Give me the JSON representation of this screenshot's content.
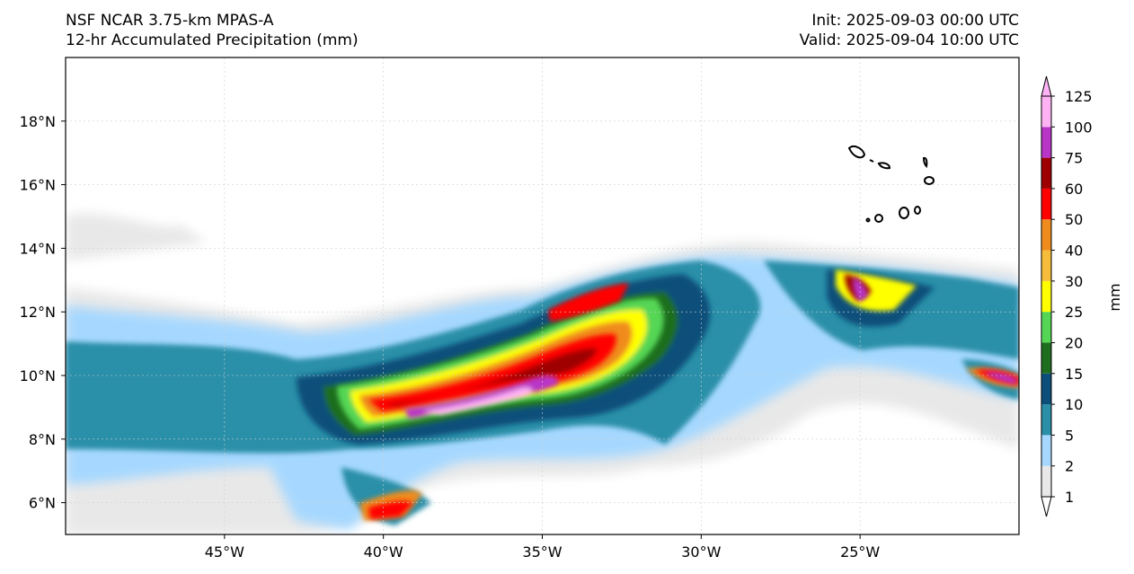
{
  "header": {
    "title_left_1": "NSF NCAR 3.75-km MPAS-A",
    "title_left_2": "12-hr Accumulated Precipitation (mm)",
    "title_right_1": "Init: 2025-09-03 00:00 UTC",
    "title_right_2": "Valid: 2025-09-04 10:00 UTC"
  },
  "axes": {
    "lon_range": [
      -50,
      -20
    ],
    "lat_range": [
      5,
      20
    ],
    "x_ticks": [
      {
        "value": -45,
        "label": "45°W"
      },
      {
        "value": -40,
        "label": "40°W"
      },
      {
        "value": -35,
        "label": "35°W"
      },
      {
        "value": -30,
        "label": "30°W"
      },
      {
        "value": -25,
        "label": "25°W"
      }
    ],
    "y_ticks": [
      {
        "value": 6,
        "label": "6°N"
      },
      {
        "value": 8,
        "label": "8°N"
      },
      {
        "value": 10,
        "label": "10°N"
      },
      {
        "value": 12,
        "label": "12°N"
      },
      {
        "value": 14,
        "label": "14°N"
      },
      {
        "value": 16,
        "label": "16°N"
      },
      {
        "value": 18,
        "label": "18°N"
      }
    ]
  },
  "colorbar": {
    "label": "mm",
    "levels": [
      "1",
      "2",
      "5",
      "10",
      "15",
      "20",
      "25",
      "30",
      "40",
      "50",
      "60",
      "75",
      "100",
      "125"
    ],
    "colors": [
      "#e8e8e8",
      "#a6d8ff",
      "#2b8fa8",
      "#0b4f7a",
      "#1f6e1f",
      "#55d655",
      "#ffff00",
      "#f5bd3a",
      "#f08c1e",
      "#ff0000",
      "#9e0000",
      "#b835c8",
      "#ffb3f5"
    ]
  },
  "features": {
    "islands_name": "Cape Verde islands",
    "system_name": "tropical disturbance rain band"
  }
}
